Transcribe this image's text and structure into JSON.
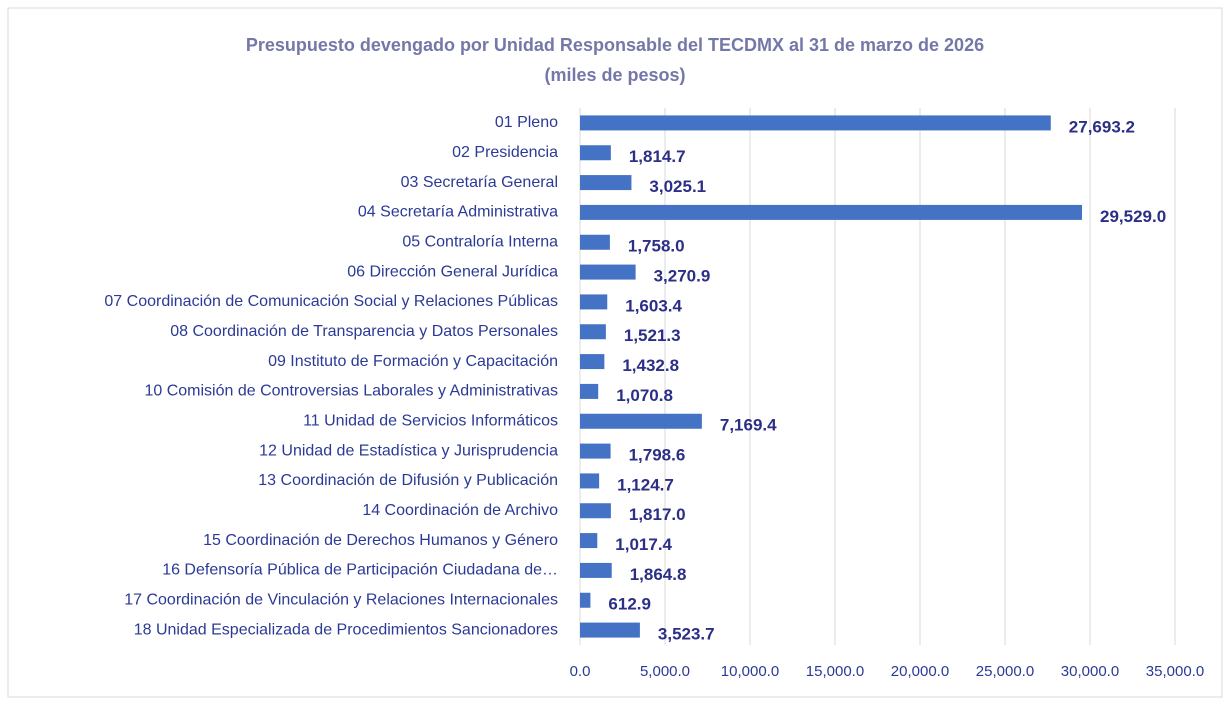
{
  "chart_data": {
    "type": "bar",
    "orientation": "horizontal",
    "title": "Presupuesto devengado por Unidad Responsable del TECDMX al 31 de marzo de 2026",
    "subtitle": "(miles de pesos)",
    "categories": [
      "01  Pleno",
      "02 Presidencia",
      "03 Secretaría General",
      "04 Secretaría Administrativa",
      "05 Contraloría Interna",
      "06 Dirección General Jurídica",
      "07 Coordinación de Comunicación Social y Relaciones Públicas",
      "08 Coordinación de Transparencia y Datos Personales",
      "09 Instituto de Formación y Capacitación",
      "10 Comisión de Controversias Laborales y Administrativas",
      "11 Unidad de Servicios Informáticos",
      "12 Unidad de Estadística y Jurisprudencia",
      "13 Coordinación de Difusión y Publicación",
      "14 Coordinación de Archivo",
      "15 Coordinación de Derechos Humanos y Género",
      "16 Defensoría  Pública de Participación Ciudadana de…",
      "17 Coordinación de Vinculación y Relaciones Internacionales",
      "18 Unidad Especializada de Procedimientos Sancionadores"
    ],
    "values": [
      27693.2,
      1814.7,
      3025.1,
      29529.0,
      1758.0,
      3270.9,
      1603.4,
      1521.3,
      1432.8,
      1070.8,
      7169.4,
      1798.6,
      1124.7,
      1817.0,
      1017.4,
      1864.8,
      612.9,
      3523.7
    ],
    "value_labels": [
      "27,693.2",
      "1,814.7",
      "3,025.1",
      "29,529.0",
      "1,758.0",
      "3,270.9",
      "1,603.4",
      "1,521.3",
      "1,432.8",
      "1,070.8",
      "7,169.4",
      "1,798.6",
      "1,124.7",
      "1,817.0",
      "1,017.4",
      "1,864.8",
      "612.9",
      "3,523.7"
    ],
    "color": "#4472c4",
    "xlim": [
      0,
      35000
    ],
    "xticks": [
      {
        "value": 0,
        "label": "0.0"
      },
      {
        "value": 5000,
        "label": "5,000.0"
      },
      {
        "value": 10000,
        "label": "10,000.0"
      },
      {
        "value": 15000,
        "label": "15,000.0"
      },
      {
        "value": 20000,
        "label": "20,000.0"
      },
      {
        "value": 25000,
        "label": "25,000.0"
      },
      {
        "value": 30000,
        "label": "30,000.0"
      },
      {
        "value": 35000,
        "label": "35,000.0"
      }
    ],
    "grid": true
  }
}
